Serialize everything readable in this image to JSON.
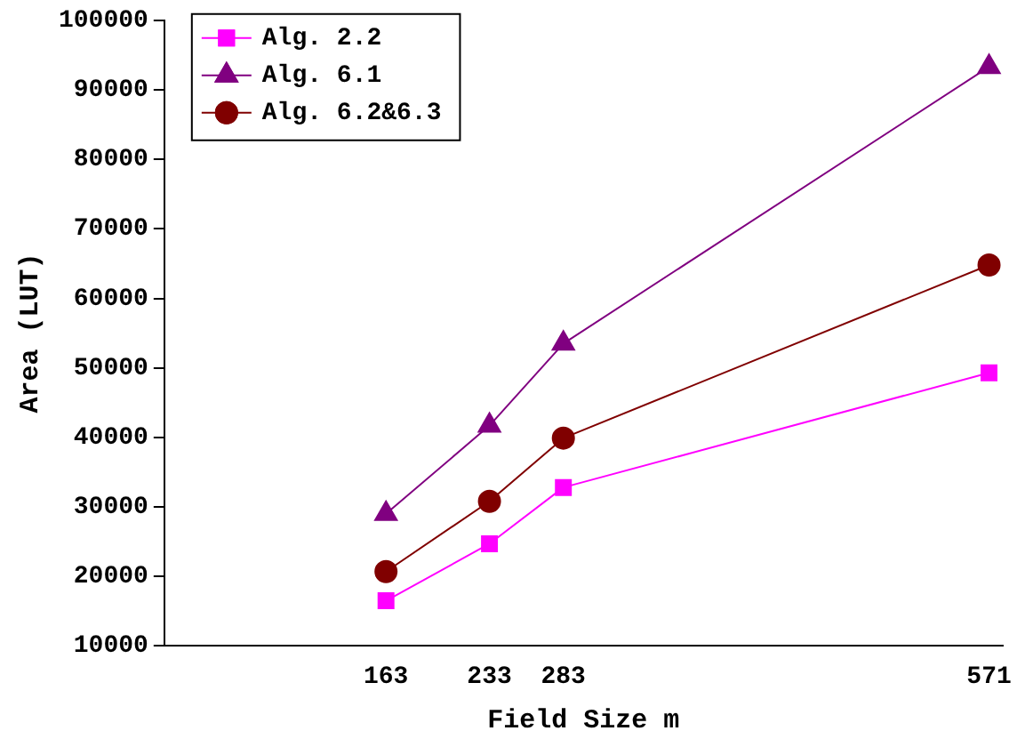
{
  "chart_data": {
    "type": "line",
    "xlabel": "Field Size m",
    "ylabel": "Area (LUT)",
    "x": [
      163,
      233,
      283,
      571
    ],
    "series": [
      {
        "name": "Alg. 2.2",
        "color": "#ff00ff",
        "marker": "square",
        "values": [
          16500,
          24700,
          32800,
          49300
        ]
      },
      {
        "name": "Alg. 6.1",
        "color": "#800080",
        "marker": "triangle",
        "values": [
          29000,
          41700,
          53500,
          93300
        ]
      },
      {
        "name": "Alg. 6.2&6.3",
        "color": "#800000",
        "marker": "circle",
        "values": [
          20700,
          30800,
          39900,
          64800
        ]
      }
    ],
    "xlim": [
      13,
      580
    ],
    "xticks": [
      163,
      233,
      283,
      571
    ],
    "ylim": [
      10000,
      100000
    ],
    "yticks": [
      10000,
      20000,
      30000,
      40000,
      50000,
      60000,
      70000,
      80000,
      90000,
      100000
    ],
    "grid": false,
    "legend": "top left",
    "line_style": "solid"
  }
}
